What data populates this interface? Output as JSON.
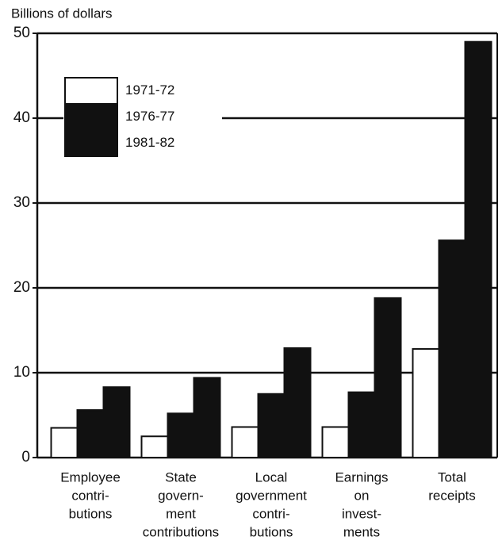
{
  "chart_data": {
    "type": "bar",
    "y_label": "Billions of dollars",
    "categories": [
      [
        "Employee",
        "contri-",
        "butions"
      ],
      [
        "State",
        "govern-",
        "ment",
        "contributions"
      ],
      [
        "Local",
        "government",
        "contri-",
        "butions"
      ],
      [
        "Earnings",
        "on",
        "invest-",
        "ments"
      ],
      [
        "Total",
        "receipts"
      ]
    ],
    "series": [
      {
        "name": "1971-72",
        "color": "#ffffff",
        "values": [
          3.5,
          2.5,
          3.6,
          3.6,
          12.8
        ]
      },
      {
        "name": "1976-77",
        "color": "#111111",
        "values": [
          5.6,
          5.2,
          7.5,
          7.7,
          25.6
        ]
      },
      {
        "name": "1981-82",
        "color": "#111111",
        "values": [
          8.3,
          9.4,
          12.9,
          18.8,
          49.0
        ]
      }
    ],
    "ylim": [
      0,
      50
    ],
    "yticks": [
      0,
      10,
      20,
      30,
      40,
      50
    ],
    "grid": true,
    "legend": "upper left"
  }
}
